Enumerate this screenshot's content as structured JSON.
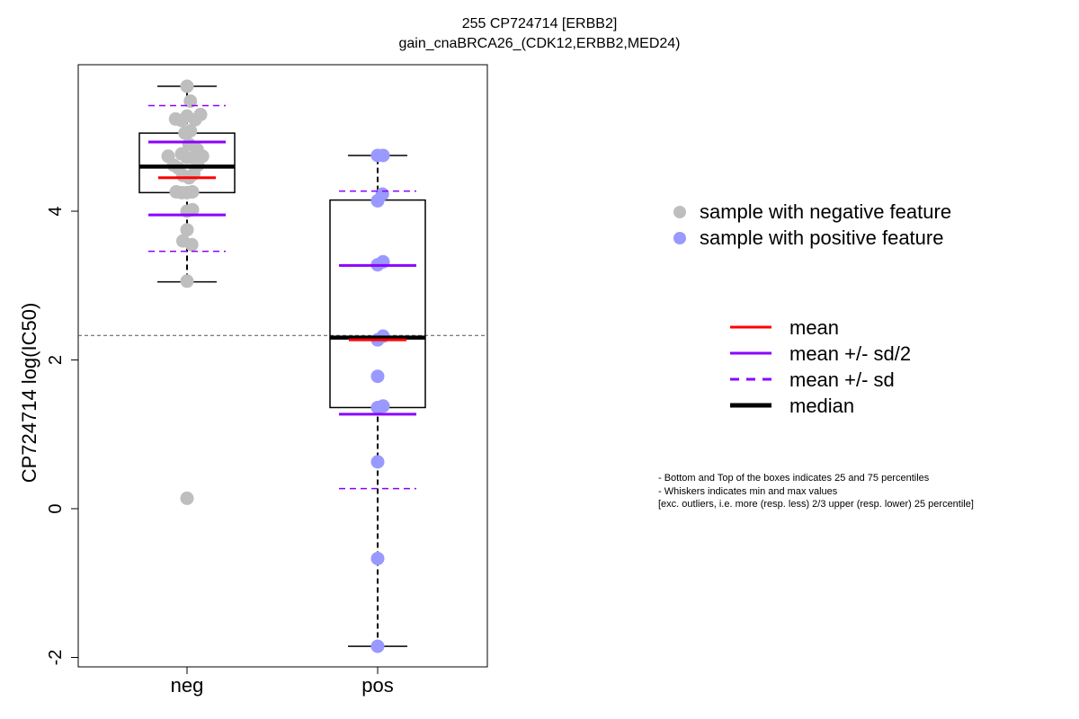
{
  "title": "255 CP724714 [ERBB2]",
  "subtitle": "gain_cnaBRCA26_(CDK12,ERBB2,MED24)",
  "colors": {
    "neg_point": "#bebebe",
    "pos_point": "#9999ff",
    "mean": "#ff0000",
    "sd": "#8b00ff",
    "median": "#000000",
    "reference_line": "#555555"
  },
  "legend_points": [
    {
      "label": "sample with negative feature",
      "color": "#bebebe"
    },
    {
      "label": "sample with positive feature",
      "color": "#9999ff"
    }
  ],
  "legend_lines": [
    {
      "label": "mean",
      "color": "#ff0000",
      "style": "solid"
    },
    {
      "label": "mean +/- sd/2",
      "color": "#8b00ff",
      "style": "solid"
    },
    {
      "label": "mean +/- sd",
      "color": "#8b00ff",
      "style": "dashed"
    },
    {
      "label": "median",
      "color": "#000000",
      "style": "thick"
    }
  ],
  "notes": [
    "- Bottom and Top of the boxes indicates 25 and 75 percentiles",
    "- Whiskers indicates min and max values",
    "[exc. outliers, i.e. more (resp. less) 2/3 upper (resp. lower) 25 percentile]"
  ],
  "chart_data": {
    "type": "box",
    "ylabel": "CP724714 log(IC50)",
    "categories": [
      "neg",
      "pos"
    ],
    "yticks": [
      -2,
      0,
      2,
      4
    ],
    "ylim": [
      -2.1,
      5.9
    ],
    "reference_y": 2.33,
    "groups": [
      {
        "name": "neg",
        "whisker_low": 3.05,
        "q1": 4.25,
        "median": 4.6,
        "q3": 5.05,
        "whisker_high": 5.68,
        "mean": 4.45,
        "sd_half_low": 3.95,
        "sd_half_high": 4.93,
        "sd_low": 3.46,
        "sd_high": 5.42,
        "points": [
          {
            "x": 0.0,
            "y": 5.68
          },
          {
            "x": 0.05,
            "y": 5.48
          },
          {
            "x": -0.17,
            "y": 5.24
          },
          {
            "x": -0.08,
            "y": 5.22
          },
          {
            "x": 0.0,
            "y": 5.28
          },
          {
            "x": 0.12,
            "y": 5.23
          },
          {
            "x": 0.2,
            "y": 5.3
          },
          {
            "x": -0.03,
            "y": 5.05
          },
          {
            "x": 0.05,
            "y": 5.08
          },
          {
            "x": 0.03,
            "y": 4.9
          },
          {
            "x": 0.15,
            "y": 4.83
          },
          {
            "x": -0.28,
            "y": 4.74
          },
          {
            "x": -0.08,
            "y": 4.77
          },
          {
            "x": 0.0,
            "y": 4.72
          },
          {
            "x": 0.08,
            "y": 4.72
          },
          {
            "x": 0.23,
            "y": 4.74
          },
          {
            "x": -0.2,
            "y": 4.62
          },
          {
            "x": -0.13,
            "y": 4.58
          },
          {
            "x": 0.16,
            "y": 4.62
          },
          {
            "x": -0.06,
            "y": 4.48
          },
          {
            "x": 0.03,
            "y": 4.45
          },
          {
            "x": 0.1,
            "y": 4.5
          },
          {
            "x": -0.16,
            "y": 4.26
          },
          {
            "x": -0.08,
            "y": 4.25
          },
          {
            "x": 0.0,
            "y": 4.25
          },
          {
            "x": 0.08,
            "y": 4.26
          },
          {
            "x": 0.0,
            "y": 4.0
          },
          {
            "x": 0.08,
            "y": 4.02
          },
          {
            "x": 0.0,
            "y": 3.75
          },
          {
            "x": -0.06,
            "y": 3.6
          },
          {
            "x": 0.07,
            "y": 3.55
          },
          {
            "x": 0.0,
            "y": 3.06
          },
          {
            "x": 0.0,
            "y": 0.14
          }
        ]
      },
      {
        "name": "pos",
        "whisker_low": -1.85,
        "q1": 1.36,
        "median": 2.3,
        "q3": 4.15,
        "whisker_high": 4.75,
        "mean": 2.27,
        "sd_half_low": 1.27,
        "sd_half_high": 3.27,
        "sd_low": 0.27,
        "sd_high": 4.27,
        "points": [
          {
            "x": 0.0,
            "y": 4.75
          },
          {
            "x": 0.08,
            "y": 4.75
          },
          {
            "x": 0.07,
            "y": 4.23
          },
          {
            "x": 0.0,
            "y": 4.14
          },
          {
            "x": 0.0,
            "y": 3.28
          },
          {
            "x": 0.08,
            "y": 3.32
          },
          {
            "x": 0.0,
            "y": 2.27
          },
          {
            "x": 0.08,
            "y": 2.32
          },
          {
            "x": 0.0,
            "y": 1.78
          },
          {
            "x": 0.0,
            "y": 1.36
          },
          {
            "x": 0.08,
            "y": 1.38
          },
          {
            "x": 0.0,
            "y": 0.63
          },
          {
            "x": 0.0,
            "y": -0.67
          },
          {
            "x": 0.0,
            "y": -1.85
          }
        ]
      }
    ]
  }
}
